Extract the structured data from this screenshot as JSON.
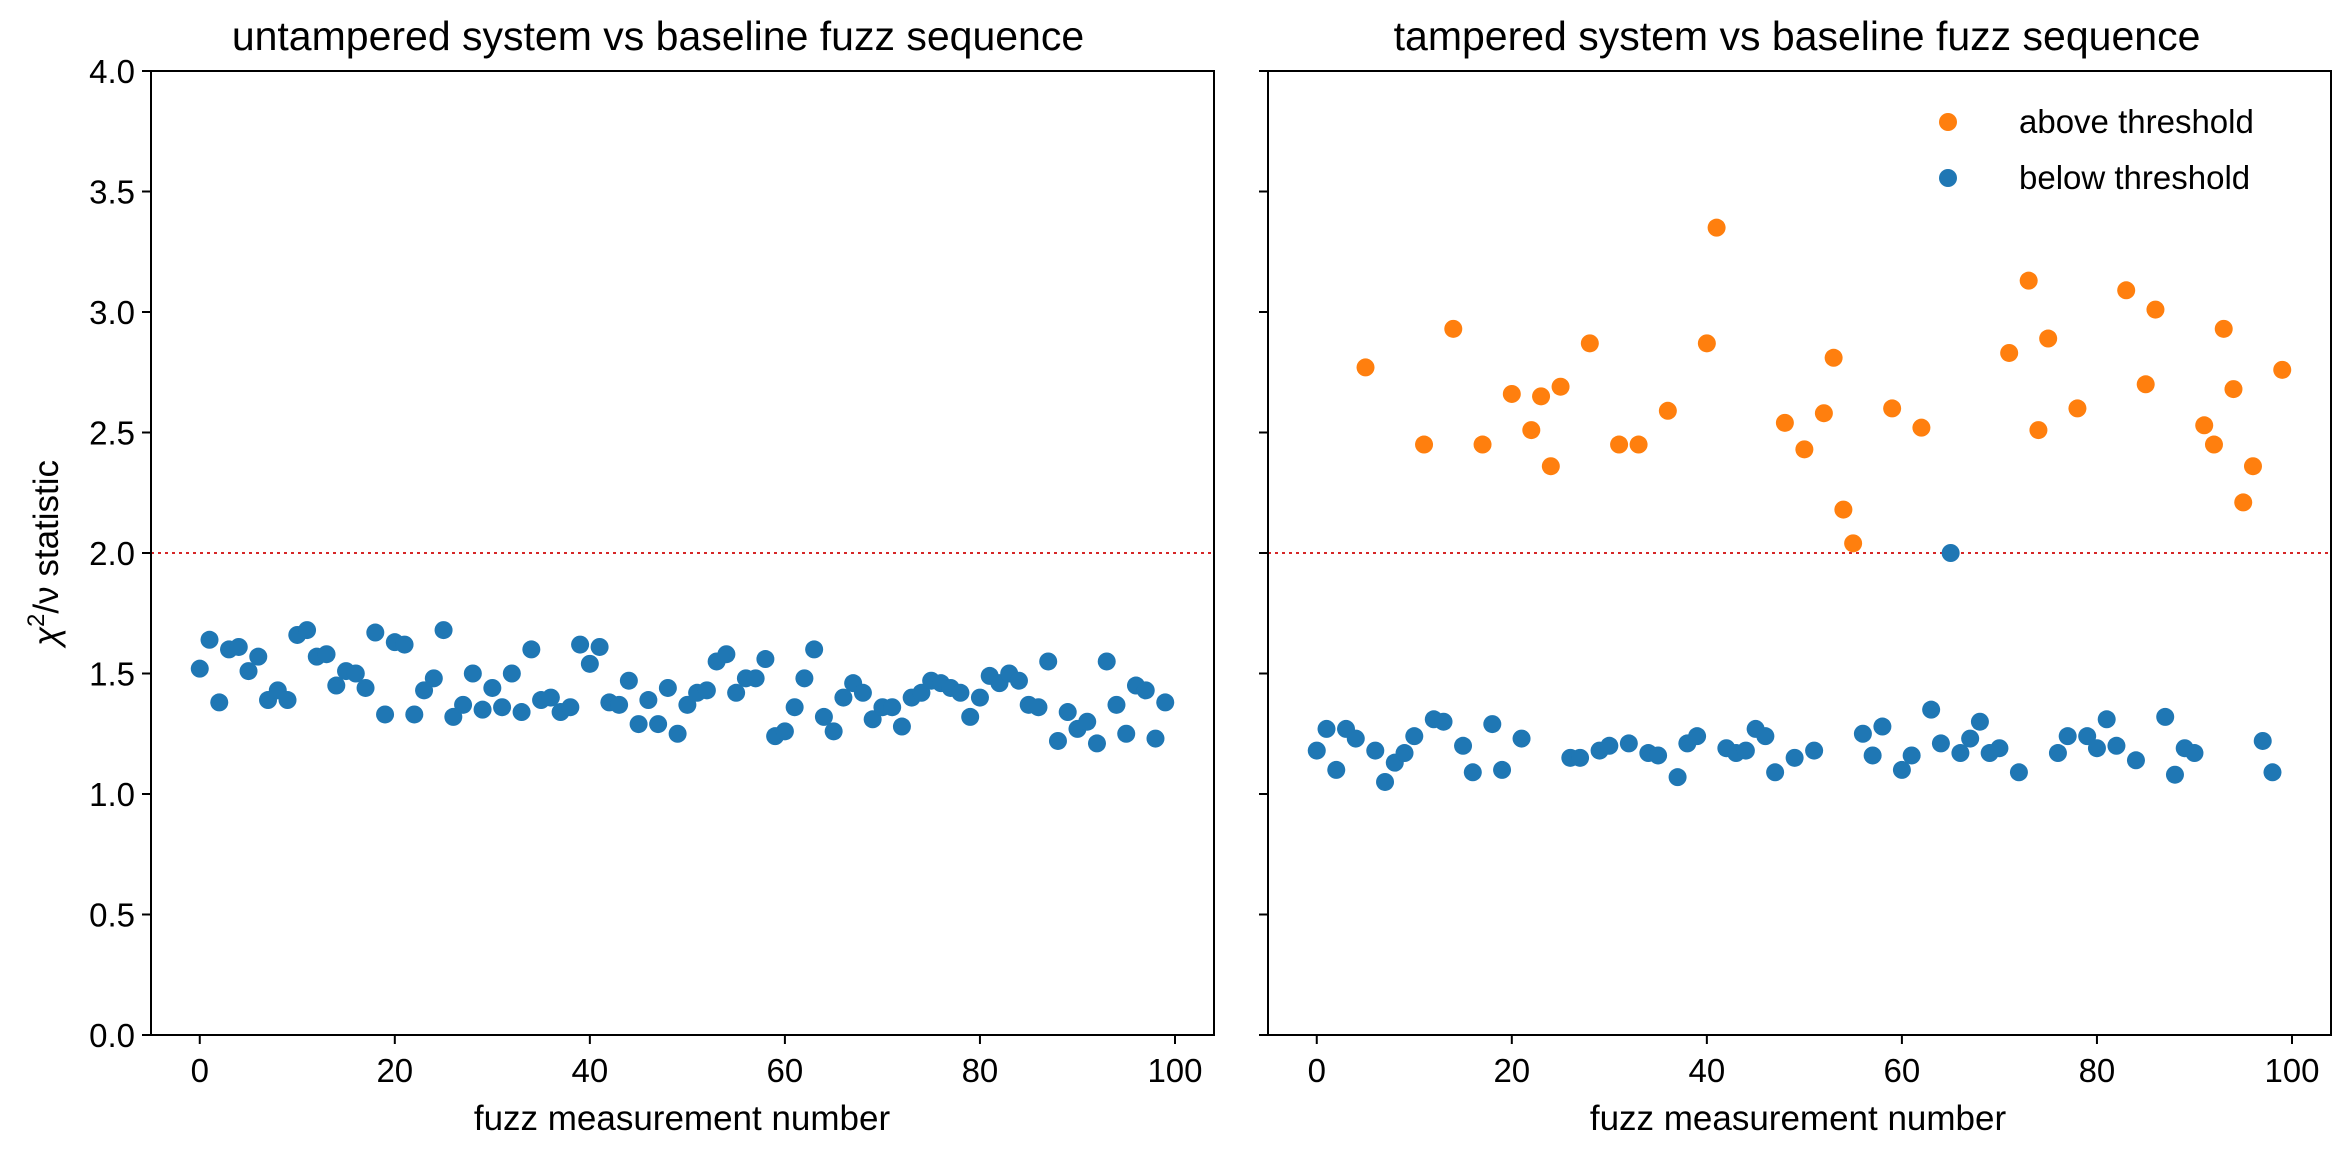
{
  "chart_data": [
    {
      "type": "scatter",
      "title": "untampered system vs baseline fuzz sequence",
      "xlabel": "fuzz measurement number",
      "ylabel_main": "χ",
      "ylabel_sup": "2",
      "ylabel_rest": "/ν statistic",
      "xlim": [
        -5,
        104
      ],
      "ylim": [
        0.0,
        4.0
      ],
      "xticks": [
        0,
        20,
        40,
        60,
        80,
        100
      ],
      "xtick_labels": [
        "0",
        "20",
        "40",
        "60",
        "80",
        "100"
      ],
      "yticks": [
        0.0,
        0.5,
        1.0,
        1.5,
        2.0,
        2.5,
        3.0,
        3.5,
        4.0
      ],
      "ytick_labels": [
        "0.0",
        "0.5",
        "1.0",
        "1.5",
        "2.0",
        "2.5",
        "3.0",
        "3.5",
        "4.0"
      ],
      "threshold": 2.0,
      "threshold_color": "#d62728",
      "grid": false,
      "series": [
        {
          "name": "below threshold",
          "color": "#1f77b4",
          "x": [
            0,
            1,
            2,
            3,
            4,
            5,
            6,
            7,
            8,
            9,
            10,
            11,
            12,
            13,
            14,
            15,
            16,
            17,
            18,
            19,
            20,
            21,
            22,
            23,
            24,
            25,
            26,
            27,
            28,
            29,
            30,
            31,
            32,
            33,
            34,
            35,
            36,
            37,
            38,
            39,
            40,
            41,
            42,
            43,
            44,
            45,
            46,
            47,
            48,
            49,
            50,
            51,
            52,
            53,
            54,
            55,
            56,
            57,
            58,
            59,
            60,
            61,
            62,
            63,
            64,
            65,
            66,
            67,
            68,
            69,
            70,
            71,
            72,
            73,
            74,
            75,
            76,
            77,
            78,
            79,
            80,
            81,
            82,
            83,
            84,
            85,
            86,
            87,
            88,
            89,
            90,
            91,
            92,
            93,
            94,
            95,
            96,
            97,
            98,
            99
          ],
          "y": [
            1.52,
            1.64,
            1.38,
            1.6,
            1.61,
            1.51,
            1.57,
            1.39,
            1.43,
            1.39,
            1.66,
            1.68,
            1.57,
            1.58,
            1.45,
            1.51,
            1.5,
            1.44,
            1.67,
            1.33,
            1.63,
            1.62,
            1.33,
            1.43,
            1.48,
            1.68,
            1.32,
            1.37,
            1.5,
            1.35,
            1.44,
            1.36,
            1.5,
            1.34,
            1.6,
            1.39,
            1.4,
            1.34,
            1.36,
            1.62,
            1.54,
            1.61,
            1.38,
            1.37,
            1.47,
            1.29,
            1.39,
            1.29,
            1.44,
            1.25,
            1.37,
            1.42,
            1.43,
            1.55,
            1.58,
            1.42,
            1.48,
            1.48,
            1.56,
            1.24,
            1.26,
            1.36,
            1.48,
            1.6,
            1.32,
            1.26,
            1.4,
            1.46,
            1.42,
            1.31,
            1.36,
            1.36,
            1.28,
            1.4,
            1.42,
            1.47,
            1.46,
            1.44,
            1.42,
            1.32,
            1.4,
            1.49,
            1.46,
            1.5,
            1.47,
            1.37,
            1.36,
            1.55,
            1.22,
            1.34,
            1.27,
            1.3,
            1.21,
            1.55,
            1.37,
            1.25,
            1.45,
            1.43,
            1.23,
            1.38
          ]
        }
      ]
    },
    {
      "type": "scatter",
      "title": "tampered system vs baseline fuzz sequence",
      "xlabel": "fuzz measurement number",
      "xlim": [
        -5,
        104
      ],
      "ylim": [
        0.0,
        4.0
      ],
      "xticks": [
        0,
        20,
        40,
        60,
        80,
        100
      ],
      "xtick_labels": [
        "0",
        "20",
        "40",
        "60",
        "80",
        "100"
      ],
      "yticks": [
        0.0,
        0.5,
        1.0,
        1.5,
        2.0,
        2.5,
        3.0,
        3.5,
        4.0
      ],
      "threshold": 2.0,
      "threshold_color": "#d62728",
      "grid": false,
      "legend_position": "top-right",
      "series": [
        {
          "name": "above threshold",
          "color": "#ff7f0e",
          "x": [
            5,
            11,
            14,
            17,
            20,
            22,
            23,
            24,
            25,
            28,
            31,
            33,
            36,
            40,
            41,
            48,
            50,
            52,
            53,
            54,
            55,
            59,
            62,
            71,
            73,
            74,
            75,
            78,
            83,
            85,
            86,
            91,
            92,
            93,
            94,
            95,
            96,
            99
          ],
          "y": [
            2.77,
            2.45,
            2.93,
            2.45,
            2.66,
            2.51,
            2.65,
            2.36,
            2.69,
            2.87,
            2.45,
            2.45,
            2.59,
            2.87,
            3.35,
            2.54,
            2.43,
            2.58,
            2.81,
            2.18,
            2.04,
            2.6,
            2.52,
            2.83,
            3.13,
            2.51,
            2.89,
            2.6,
            3.09,
            2.7,
            3.01,
            2.53,
            2.45,
            2.93,
            2.68,
            2.21,
            2.36,
            2.76
          ]
        },
        {
          "name": "below threshold",
          "color": "#1f77b4",
          "x": [
            0,
            1,
            2,
            3,
            4,
            6,
            7,
            8,
            9,
            10,
            12,
            13,
            15,
            16,
            18,
            19,
            21,
            26,
            27,
            29,
            30,
            32,
            34,
            35,
            37,
            38,
            39,
            42,
            43,
            44,
            45,
            46,
            47,
            49,
            51,
            56,
            57,
            58,
            60,
            61,
            63,
            64,
            65,
            66,
            67,
            68,
            69,
            70,
            72,
            76,
            77,
            79,
            80,
            81,
            82,
            84,
            87,
            88,
            89,
            90,
            97,
            98
          ],
          "y": [
            1.18,
            1.27,
            1.1,
            1.27,
            1.23,
            1.18,
            1.05,
            1.13,
            1.17,
            1.24,
            1.31,
            1.3,
            1.2,
            1.09,
            1.29,
            1.1,
            1.23,
            1.15,
            1.15,
            1.18,
            1.2,
            1.21,
            1.17,
            1.16,
            1.07,
            1.21,
            1.24,
            1.19,
            1.17,
            1.18,
            1.27,
            1.24,
            1.09,
            1.15,
            1.18,
            1.25,
            1.16,
            1.28,
            1.1,
            1.16,
            1.35,
            1.21,
            2.0,
            1.17,
            1.23,
            1.3,
            1.17,
            1.19,
            1.09,
            1.17,
            1.24,
            1.24,
            1.19,
            1.31,
            1.2,
            1.14,
            1.32,
            1.08,
            1.19,
            1.17,
            1.22,
            1.09
          ]
        }
      ]
    }
  ]
}
